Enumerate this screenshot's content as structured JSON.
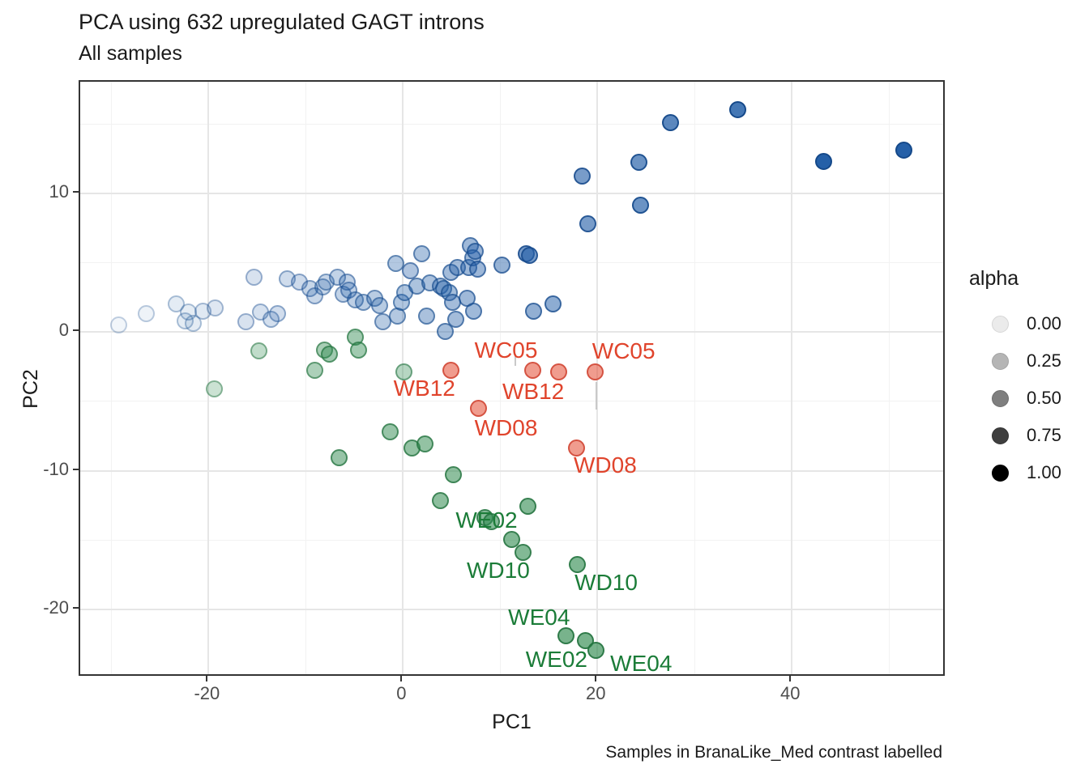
{
  "chart_data": {
    "type": "scatter",
    "title": "PCA using 632 upregulated GAGT introns",
    "subtitle": "All samples",
    "caption": "Samples in BranaLike_Med contrast labelled",
    "xlabel": "PC1",
    "ylabel": "PC2",
    "xlim": [
      -33.2,
      55.9
    ],
    "ylim": [
      -24.9,
      18.05
    ],
    "x_ticks": [
      -20,
      0,
      20,
      40
    ],
    "y_ticks": [
      10,
      0,
      -10,
      -20
    ],
    "x_minor_gridlines": [
      -30,
      -10,
      10,
      30,
      50
    ],
    "y_minor_gridlines": [
      15,
      5,
      -5,
      -15
    ],
    "grid": true,
    "legend": {
      "title": "alpha",
      "position": "right",
      "entries": [
        {
          "value": "0.00",
          "fill": "#ebebeb",
          "border": "#d6d6d6"
        },
        {
          "value": "0.25",
          "fill": "#b5b5b5",
          "border": "#a3a3a3"
        },
        {
          "value": "0.50",
          "fill": "#7f7f7f",
          "border": "#6e6e6e"
        },
        {
          "value": "0.75",
          "fill": "#3f3f3f",
          "border": "#333333"
        },
        {
          "value": "1.00",
          "fill": "#000000",
          "border": "#000000"
        }
      ]
    },
    "series": [
      {
        "name": "blue-group",
        "fill_rgb": "37,96,168",
        "border_rgb": "21,73,138",
        "points": [
          [
            -29.2,
            0.5,
            0.06
          ],
          [
            -26.4,
            1.3,
            0.08
          ],
          [
            -23.3,
            2.0,
            0.12
          ],
          [
            -22.4,
            0.8,
            0.12
          ],
          [
            -22.0,
            1.4,
            0.12
          ],
          [
            -21.5,
            0.6,
            0.12
          ],
          [
            -20.5,
            1.5,
            0.14
          ],
          [
            -19.3,
            1.7,
            0.15
          ],
          [
            -16.1,
            0.7,
            0.18
          ],
          [
            -15.3,
            3.9,
            0.18
          ],
          [
            -14.6,
            1.4,
            0.19
          ],
          [
            -13.5,
            0.9,
            0.2
          ],
          [
            -12.9,
            1.3,
            0.21
          ],
          [
            -11.9,
            3.8,
            0.22
          ],
          [
            -10.6,
            3.6,
            0.23
          ],
          [
            -9.5,
            3.1,
            0.25
          ],
          [
            -9.0,
            2.6,
            0.25
          ],
          [
            -8.2,
            3.2,
            0.26
          ],
          [
            -7.9,
            3.6,
            0.26
          ],
          [
            -6.7,
            3.9,
            0.28
          ],
          [
            -6.1,
            2.7,
            0.28
          ],
          [
            -5.7,
            3.6,
            0.29
          ],
          [
            -5.5,
            3.0,
            0.29
          ],
          [
            -4.9,
            2.3,
            0.3
          ],
          [
            -4.0,
            2.1,
            0.31
          ],
          [
            -2.9,
            2.4,
            0.32
          ],
          [
            -2.4,
            1.9,
            0.33
          ],
          [
            -2.0,
            0.7,
            0.33
          ],
          [
            -0.7,
            4.9,
            0.35
          ],
          [
            -0.5,
            1.1,
            0.35
          ],
          [
            -0.1,
            2.1,
            0.36
          ],
          [
            0.2,
            2.8,
            0.36
          ],
          [
            0.8,
            4.4,
            0.37
          ],
          [
            1.5,
            3.3,
            0.38
          ],
          [
            2.0,
            5.6,
            0.38
          ],
          [
            2.5,
            1.1,
            0.39
          ],
          [
            2.8,
            3.5,
            0.39
          ],
          [
            3.9,
            3.3,
            0.4
          ],
          [
            4.2,
            3.1,
            0.41
          ],
          [
            4.4,
            0.0,
            0.41
          ],
          [
            4.8,
            2.8,
            0.41
          ],
          [
            5.0,
            4.3,
            0.42
          ],
          [
            5.1,
            2.1,
            0.42
          ],
          [
            5.5,
            0.9,
            0.42
          ],
          [
            5.6,
            4.6,
            0.42
          ],
          [
            6.6,
            2.4,
            0.44
          ],
          [
            6.8,
            4.6,
            0.44
          ],
          [
            7.0,
            6.2,
            0.44
          ],
          [
            7.2,
            5.3,
            0.44
          ],
          [
            7.3,
            1.5,
            0.44
          ],
          [
            7.5,
            5.8,
            0.45
          ],
          [
            7.7,
            4.5,
            0.45
          ],
          [
            10.2,
            4.8,
            0.48
          ],
          [
            12.7,
            5.6,
            0.62
          ],
          [
            13.1,
            5.5,
            0.62
          ],
          [
            13.5,
            1.5,
            0.5
          ],
          [
            15.5,
            2.0,
            0.52
          ],
          [
            18.5,
            11.2,
            0.62
          ],
          [
            19.1,
            7.8,
            0.62
          ],
          [
            24.3,
            12.2,
            0.68
          ],
          [
            24.5,
            9.1,
            0.68
          ],
          [
            27.6,
            15.1,
            0.75
          ],
          [
            34.5,
            16.0,
            0.85
          ],
          [
            43.3,
            12.3,
            1.0
          ],
          [
            51.6,
            13.1,
            1.0
          ]
        ]
      },
      {
        "name": "green-group",
        "fill_rgb": "47,138,79",
        "border_rgb": "33,112,60",
        "points": [
          [
            -19.4,
            -4.1,
            0.25
          ],
          [
            -14.8,
            -1.4,
            0.3
          ],
          [
            -9.0,
            -2.8,
            0.4
          ],
          [
            -8.0,
            -1.3,
            0.42
          ],
          [
            -7.5,
            -1.6,
            0.45
          ],
          [
            -4.9,
            -0.4,
            0.45
          ],
          [
            -4.5,
            -1.3,
            0.45
          ],
          [
            0.1,
            -2.9,
            0.35
          ],
          [
            -1.3,
            -7.2,
            0.5
          ],
          [
            1.0,
            -8.4,
            0.52
          ],
          [
            2.3,
            -8.1,
            0.52
          ],
          [
            -6.5,
            -9.1,
            0.5
          ],
          [
            3.9,
            -12.2,
            0.55
          ],
          [
            5.2,
            -10.3,
            0.55
          ],
          [
            8.5,
            -13.4,
            0.58
          ],
          [
            9.1,
            -13.7,
            0.58
          ],
          [
            12.9,
            -12.6,
            0.6
          ],
          [
            11.2,
            -15.0,
            0.6
          ],
          [
            12.4,
            -15.9,
            0.6
          ],
          [
            18.0,
            -16.8,
            0.62
          ],
          [
            16.8,
            -21.9,
            0.65
          ],
          [
            18.8,
            -22.3,
            0.65
          ],
          [
            19.9,
            -23.0,
            0.65
          ]
        ]
      },
      {
        "name": "red-group",
        "fill_rgb": "228,75,50",
        "border_rgb": "203,56,38",
        "points": [
          [
            5.0,
            -2.8,
            0.55
          ],
          [
            13.4,
            -2.8,
            0.55
          ],
          [
            16.1,
            -2.9,
            0.55
          ],
          [
            19.8,
            -2.9,
            0.55
          ],
          [
            7.8,
            -5.5,
            0.55
          ],
          [
            17.9,
            -8.4,
            0.55
          ]
        ]
      }
    ],
    "label_colors": {
      "red": "#e0442c",
      "green": "#1b7c38"
    },
    "point_labels": [
      {
        "text": "WC05",
        "color": "red",
        "x": 10.6,
        "y": -1.35
      },
      {
        "text": "WC05",
        "color": "red",
        "x": 22.7,
        "y": -1.4
      },
      {
        "text": "WB12",
        "color": "red",
        "x": 2.2,
        "y": -4.05
      },
      {
        "text": "WB12",
        "color": "red",
        "x": 13.4,
        "y": -4.3
      },
      {
        "text": "WD08",
        "color": "red",
        "x": 10.6,
        "y": -6.9
      },
      {
        "text": "WD08",
        "color": "red",
        "x": 20.8,
        "y": -9.6
      },
      {
        "text": "WE02",
        "color": "green",
        "x": 8.6,
        "y": -13.55
      },
      {
        "text": "WD10",
        "color": "green",
        "x": 9.8,
        "y": -17.2
      },
      {
        "text": "WD10",
        "color": "green",
        "x": 20.9,
        "y": -18.1
      },
      {
        "text": "WE04",
        "color": "green",
        "x": 14.0,
        "y": -20.6
      },
      {
        "text": "WE02",
        "color": "green",
        "x": 15.8,
        "y": -23.6
      },
      {
        "text": "WE04",
        "color": "green",
        "x": 24.5,
        "y": -23.9
      }
    ],
    "leader_segments": [
      {
        "x": 11.6,
        "y1": -1.55,
        "y2": -2.45
      },
      {
        "x": 19.9,
        "y1": -3.6,
        "y2": -5.6
      }
    ]
  }
}
